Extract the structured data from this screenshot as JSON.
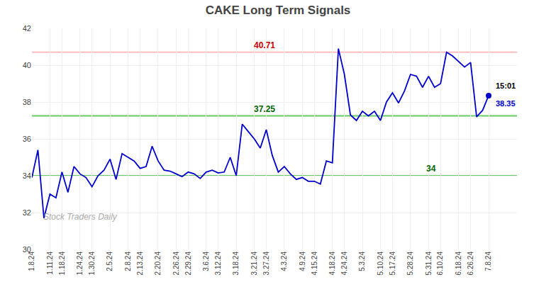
{
  "chart_data": {
    "type": "line",
    "title": "CAKE Long Term Signals",
    "categories": [
      "1.8.24",
      null,
      null,
      "1.11.24",
      null,
      "1.18.24",
      null,
      null,
      "1.24.24",
      null,
      "1.30.24",
      null,
      null,
      "2.5.24",
      null,
      null,
      "2.8.24",
      null,
      "2.13.24",
      null,
      null,
      "2.20.24",
      null,
      null,
      "2.26.24",
      null,
      "2.29.24",
      null,
      null,
      "3.6.24",
      null,
      "3.12.24",
      null,
      null,
      "3.18.24",
      null,
      null,
      "3.21.24",
      null,
      "3.27.24",
      null,
      null,
      "4.3.24",
      null,
      null,
      "4.9.24",
      null,
      "4.15.24",
      null,
      null,
      "4.18.24",
      null,
      "4.24.24",
      null,
      null,
      "5.3.24",
      null,
      null,
      "5.10.24",
      null,
      "5.17.24",
      null,
      null,
      "5.28.24",
      null,
      null,
      "5.31.24",
      null,
      "6.10.24",
      null,
      null,
      "6.18.24",
      null,
      "6.26.24",
      null,
      null,
      "7.8.24"
    ],
    "values": [
      33.9,
      35.4,
      31.7,
      33.0,
      32.8,
      34.2,
      33.1,
      34.5,
      34.1,
      33.9,
      33.4,
      34.0,
      34.3,
      34.9,
      33.8,
      35.2,
      35.0,
      34.8,
      34.4,
      34.5,
      35.6,
      34.8,
      34.3,
      34.25,
      34.1,
      33.95,
      34.2,
      34.1,
      33.85,
      34.2,
      34.3,
      34.15,
      34.2,
      35.0,
      34.0,
      36.8,
      36.4,
      36.0,
      35.5,
      36.5,
      35.1,
      34.2,
      34.5,
      34.1,
      33.8,
      33.9,
      33.7,
      33.7,
      33.55,
      34.8,
      34.7,
      40.9,
      39.5,
      37.3,
      37.0,
      37.5,
      37.25,
      37.5,
      37.0,
      38.0,
      38.5,
      37.95,
      38.6,
      39.5,
      39.4,
      38.8,
      39.4,
      38.8,
      39.0,
      40.7,
      40.5,
      40.2,
      39.9,
      40.15,
      37.2,
      37.55,
      38.35
    ],
    "color": "#0000cc",
    "ylim": [
      30,
      42
    ],
    "yticks": [
      30,
      32,
      34,
      36,
      38,
      40,
      42
    ],
    "grid": true,
    "hlines": [
      {
        "value": 40.71,
        "color": "#ffb3b3",
        "label": "40.71",
        "label_color": "#cc0000"
      },
      {
        "value": 37.25,
        "color": "#66cc66",
        "label": "37.25",
        "label_color": "#006600"
      },
      {
        "value": 34.0,
        "color": "#66cc66",
        "label": "34",
        "label_color": "#006600"
      }
    ],
    "annotations": [
      {
        "text": "15:01",
        "color": "#000000"
      },
      {
        "text": "38.35",
        "color": "#0000cc"
      }
    ],
    "watermark": {
      "text": "Stock Traders Daily",
      "color": "#aaaaaa"
    }
  }
}
